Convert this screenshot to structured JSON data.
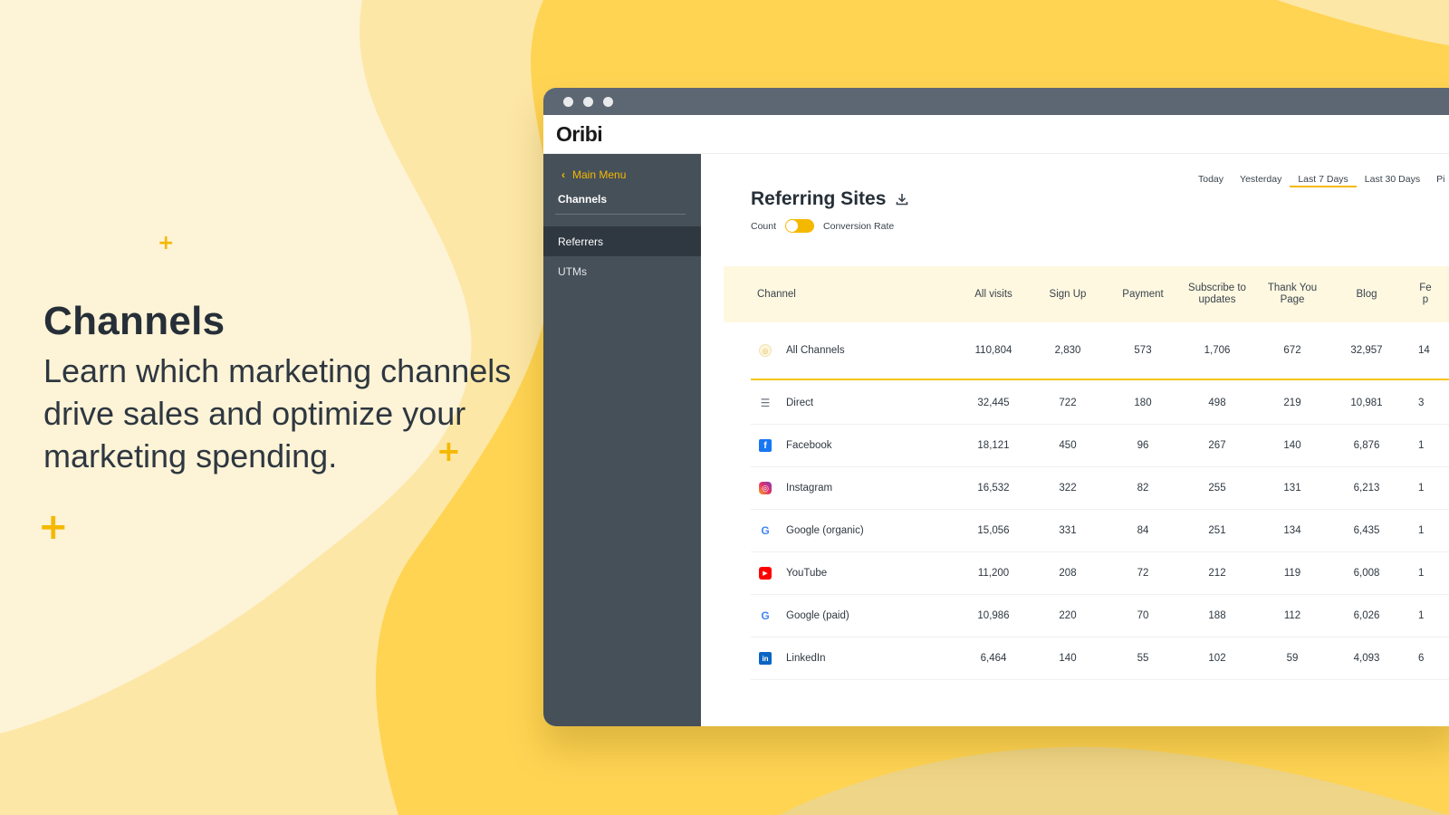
{
  "hero": {
    "title": "Channels",
    "subtitle": "Learn which marketing channels drive sales and optimize your marketing spending."
  },
  "app": {
    "logo": "Oribi"
  },
  "sidebar": {
    "main_menu": "Main Menu",
    "title": "Channels",
    "items": [
      {
        "label": "Referrers",
        "active": true
      },
      {
        "label": "UTMs",
        "active": false
      }
    ]
  },
  "date_range": {
    "options": [
      "Today",
      "Yesterday",
      "Last 7 Days",
      "Last 30 Days",
      "Pi"
    ],
    "selected": "Last 7 Days"
  },
  "page": {
    "title": "Referring Sites",
    "toggle_left": "Count",
    "toggle_right": "Conversion Rate"
  },
  "table": {
    "columns": [
      "Channel",
      "All visits",
      "Sign Up",
      "Payment",
      "Subscribe to updates",
      "Thank You Page",
      "Blog",
      "Fe p"
    ],
    "total": {
      "name": "All Channels",
      "icon": "all-channels-icon",
      "values": [
        "110,804",
        "2,830",
        "573",
        "1,706",
        "672",
        "32,957",
        "14"
      ]
    },
    "rows": [
      {
        "name": "Direct",
        "icon": "direct-icon",
        "values": [
          "32,445",
          "722",
          "180",
          "498",
          "219",
          "10,981",
          "3"
        ]
      },
      {
        "name": "Facebook",
        "icon": "facebook-icon",
        "values": [
          "18,121",
          "450",
          "96",
          "267",
          "140",
          "6,876",
          "1"
        ]
      },
      {
        "name": "Instagram",
        "icon": "instagram-icon",
        "values": [
          "16,532",
          "322",
          "82",
          "255",
          "131",
          "6,213",
          "1"
        ]
      },
      {
        "name": "Google (organic)",
        "icon": "google-icon",
        "values": [
          "15,056",
          "331",
          "84",
          "251",
          "134",
          "6,435",
          "1"
        ]
      },
      {
        "name": "YouTube",
        "icon": "youtube-icon",
        "values": [
          "11,200",
          "208",
          "72",
          "212",
          "119",
          "6,008",
          "1"
        ]
      },
      {
        "name": "Google (paid)",
        "icon": "google-icon",
        "values": [
          "10,986",
          "220",
          "70",
          "188",
          "112",
          "6,026",
          "1"
        ]
      },
      {
        "name": "LinkedIn",
        "icon": "linkedin-icon",
        "values": [
          "6,464",
          "140",
          "55",
          "102",
          "59",
          "4,093",
          "6"
        ]
      }
    ]
  },
  "colors": {
    "accent": "#f5b800",
    "sidebar": "#465059",
    "titlebar": "#5c6773"
  }
}
